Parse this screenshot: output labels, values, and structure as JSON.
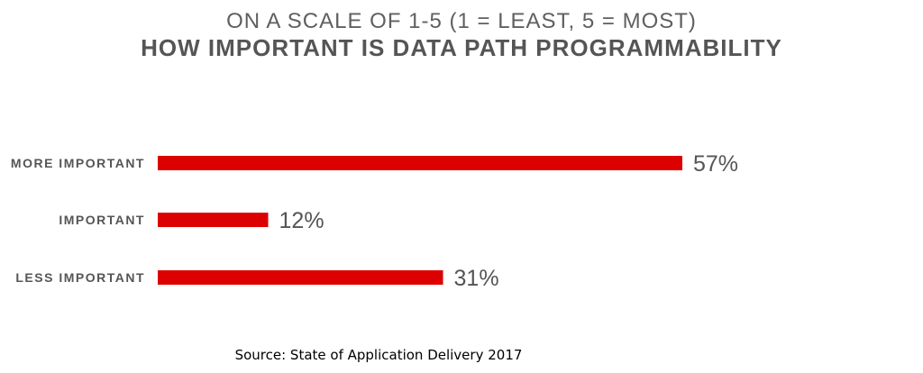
{
  "chart_data": {
    "type": "bar",
    "orientation": "horizontal",
    "subtitle": "ON A SCALE OF 1-5 (1 = LEAST, 5 = MOST)",
    "title": "HOW IMPORTANT IS DATA PATH PROGRAMMABILITY",
    "categories": [
      "MORE IMPORTANT",
      "IMPORTANT",
      "LESS IMPORTANT"
    ],
    "values": [
      57,
      12,
      31
    ],
    "value_labels": [
      "57%",
      "12%",
      "31%"
    ],
    "unit": "%",
    "xlim": [
      0,
      100
    ],
    "grid": false,
    "legend": "none",
    "bar_color": "#dd0000",
    "source": "Source: State of Application Delivery 2017"
  }
}
